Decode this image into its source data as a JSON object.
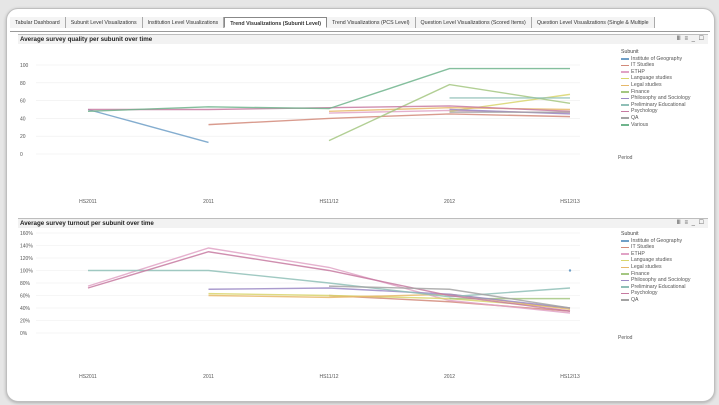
{
  "tabs": [
    {
      "label": "Tabular Dashboard",
      "active": false
    },
    {
      "label": "Subunit Level Visualizations",
      "active": false
    },
    {
      "label": "Institution Level Visualizations",
      "active": false
    },
    {
      "label": "Trend Visualizations (Subunit Level)",
      "active": true
    },
    {
      "label": "Trend Visualizations (PCS Level)",
      "active": false
    },
    {
      "label": "Question Level Visualizations (Scored Items)",
      "active": false
    },
    {
      "label": "Question Level Visualizations (Single & Multiple",
      "active": false
    }
  ],
  "colors": {
    "Institute of Geography": "#6f9fc7",
    "IT Studies": "#d28a7a",
    "ETHP": "#e1a3c6",
    "Language studies": "#d8d56c",
    "Legal studies": "#e6b86a",
    "Finance": "#a4c781",
    "Philosophy and Sociology": "#9b89c6",
    "Preliminary Educational": "#8fbfb7",
    "Psychology": "#c77aa1",
    "QA": "#a3a3a3",
    "Various": "#6fb48c"
  },
  "panel1": {
    "title": "Average survey quality per subunit over time",
    "controls": "Ⅲ ≡ _ ☐",
    "legend_title": "Subunit",
    "extra_label": "Period",
    "chart_data": {
      "type": "line",
      "categories": [
        "HS2011",
        "2011",
        "HS11/12",
        "2012",
        "HS12/13"
      ],
      "ylim": [
        0,
        100
      ],
      "yticks": [
        "100",
        "80",
        "60",
        "40",
        "20",
        "0"
      ],
      "series": [
        {
          "name": "Institute of Geography",
          "values": [
            50,
            13,
            null,
            null,
            null
          ]
        },
        {
          "name": "IT Studies",
          "values": [
            null,
            33,
            40,
            45,
            42
          ]
        },
        {
          "name": "ETHP",
          "values": [
            null,
            null,
            46,
            49,
            46
          ]
        },
        {
          "name": "Language studies",
          "values": [
            null,
            null,
            null,
            48,
            67
          ]
        },
        {
          "name": "Legal studies",
          "values": [
            null,
            null,
            48,
            52,
            50
          ]
        },
        {
          "name": "Finance",
          "values": [
            null,
            null,
            15,
            78,
            57
          ]
        },
        {
          "name": "Philosophy and Sociology",
          "values": [
            null,
            null,
            null,
            50,
            45
          ]
        },
        {
          "name": "Preliminary Educational",
          "values": [
            null,
            null,
            null,
            63,
            63
          ]
        },
        {
          "name": "Psychology",
          "values": [
            50,
            50,
            52,
            54,
            48
          ]
        },
        {
          "name": "QA",
          "values": [
            null,
            null,
            null,
            47,
            47
          ]
        },
        {
          "name": "Various",
          "values": [
            48,
            53,
            51,
            96,
            96
          ]
        }
      ]
    }
  },
  "panel2": {
    "title": "Average survey turnout per subunit over time",
    "controls": "Ⅲ ≡ _ ☐",
    "legend_title": "Subunit",
    "extra_label": "Period",
    "chart_data": {
      "type": "line",
      "categories": [
        "HS2011",
        "2011",
        "HS11/12",
        "2012",
        "HS12/13"
      ],
      "ylim": [
        0,
        160
      ],
      "yticks": [
        "160%",
        "140%",
        "120%",
        "100%",
        "80%",
        "60%",
        "40%",
        "20%",
        "0%"
      ],
      "series": [
        {
          "name": "Institute of Geography",
          "values": [
            null,
            null,
            null,
            null,
            100
          ]
        },
        {
          "name": "IT Studies",
          "values": [
            null,
            null,
            60,
            50,
            35
          ]
        },
        {
          "name": "ETHP",
          "values": [
            75,
            136,
            105,
            52,
            32
          ]
        },
        {
          "name": "Language studies",
          "values": [
            null,
            63,
            60,
            55,
            40
          ]
        },
        {
          "name": "Legal studies",
          "values": [
            null,
            60,
            57,
            62,
            38
          ]
        },
        {
          "name": "Finance",
          "values": [
            null,
            null,
            null,
            55,
            55
          ]
        },
        {
          "name": "Philosophy and Sociology",
          "values": [
            null,
            70,
            72,
            62,
            40
          ]
        },
        {
          "name": "Preliminary Educational",
          "values": [
            100,
            100,
            80,
            58,
            72
          ]
        },
        {
          "name": "Psychology",
          "values": [
            72,
            130,
            100,
            60,
            35
          ]
        },
        {
          "name": "QA",
          "values": [
            null,
            null,
            75,
            70,
            40
          ]
        }
      ]
    }
  }
}
